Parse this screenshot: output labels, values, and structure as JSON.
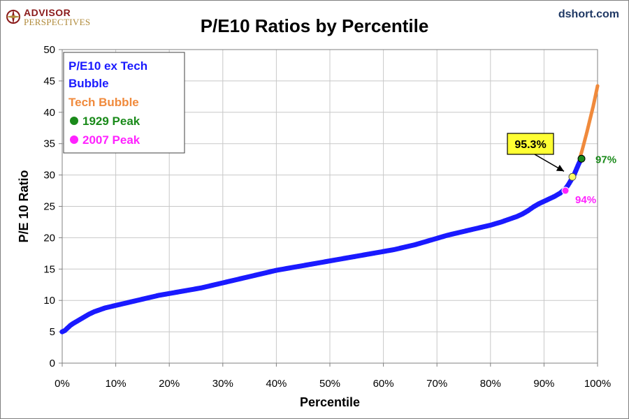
{
  "header": {
    "logo_top": "ADVISOR",
    "logo_bottom": "PERSPECTIVES",
    "site": "dshort.com"
  },
  "colors": {
    "ex_tech": "#1a1aff",
    "tech_bubble": "#f08a3c",
    "peak_1929": "#1a8a1a",
    "peak_2007": "#ff22ff",
    "callout_fill": "#ffff33",
    "current_marker": "#ffff66"
  },
  "chart_data": {
    "type": "scatter",
    "title": "P/E10 Ratios by Percentile",
    "xlabel": "Percentile",
    "ylabel": "P/E 10 Ratio",
    "xlim": [
      0,
      100
    ],
    "ylim": [
      0,
      50
    ],
    "x_ticks": [
      "0%",
      "10%",
      "20%",
      "30%",
      "40%",
      "50%",
      "60%",
      "70%",
      "80%",
      "90%",
      "100%"
    ],
    "y_ticks": [
      "0",
      "5",
      "10",
      "15",
      "20",
      "25",
      "30",
      "35",
      "40",
      "45",
      "50"
    ],
    "grid": true,
    "legend_position": "top-left",
    "legend": [
      {
        "label": "P/E10 ex Tech Bubble",
        "color": "#1a1aff",
        "marker": "none"
      },
      {
        "label": "Tech Bubble",
        "color": "#f08a3c",
        "marker": "none"
      },
      {
        "label": "1929 Peak",
        "color": "#1a8a1a",
        "marker": "dot"
      },
      {
        "label": "2007 Peak",
        "color": "#ff22ff",
        "marker": "dot"
      }
    ],
    "series": [
      {
        "name": "P/E10 ex Tech Bubble",
        "x": [
          0,
          0.5,
          1,
          1.5,
          2,
          3,
          4,
          5,
          6,
          7,
          8,
          10,
          12,
          14,
          16,
          18,
          20,
          22,
          24,
          26,
          28,
          30,
          32,
          34,
          36,
          38,
          40,
          42,
          44,
          46,
          48,
          50,
          52,
          54,
          56,
          58,
          60,
          62,
          64,
          66,
          68,
          70,
          72,
          74,
          76,
          78,
          80,
          82,
          84,
          85,
          86,
          87,
          88,
          89,
          90,
          91,
          92,
          93,
          94,
          94.5,
          95,
          95.5,
          96,
          96.5,
          97
        ],
        "y": [
          5.0,
          5.2,
          5.6,
          6.0,
          6.3,
          6.8,
          7.3,
          7.8,
          8.2,
          8.5,
          8.8,
          9.2,
          9.6,
          10.0,
          10.4,
          10.8,
          11.1,
          11.4,
          11.7,
          12.0,
          12.4,
          12.8,
          13.2,
          13.6,
          14.0,
          14.4,
          14.8,
          15.1,
          15.4,
          15.7,
          16.0,
          16.3,
          16.6,
          16.9,
          17.2,
          17.5,
          17.8,
          18.1,
          18.5,
          18.9,
          19.4,
          19.9,
          20.4,
          20.8,
          21.2,
          21.6,
          22.0,
          22.5,
          23.1,
          23.4,
          23.8,
          24.3,
          24.9,
          25.4,
          25.8,
          26.2,
          26.6,
          27.1,
          27.8,
          28.4,
          29.1,
          29.8,
          30.8,
          31.8,
          32.7
        ]
      },
      {
        "name": "Tech Bubble",
        "x": [
          96.8,
          97.2,
          97.6,
          98.0,
          98.4,
          98.8,
          99.2,
          99.6,
          100
        ],
        "y": [
          33.0,
          34.2,
          35.5,
          36.8,
          38.2,
          39.6,
          41.0,
          42.6,
          44.2
        ]
      }
    ],
    "points": [
      {
        "name": "1929 Peak",
        "x": 97,
        "y": 32.6,
        "label": "97%"
      },
      {
        "name": "2007 Peak",
        "x": 94,
        "y": 27.5,
        "label": "94%"
      },
      {
        "name": "Current",
        "x": 95.3,
        "y": 29.7,
        "label": "95.3%"
      }
    ]
  }
}
